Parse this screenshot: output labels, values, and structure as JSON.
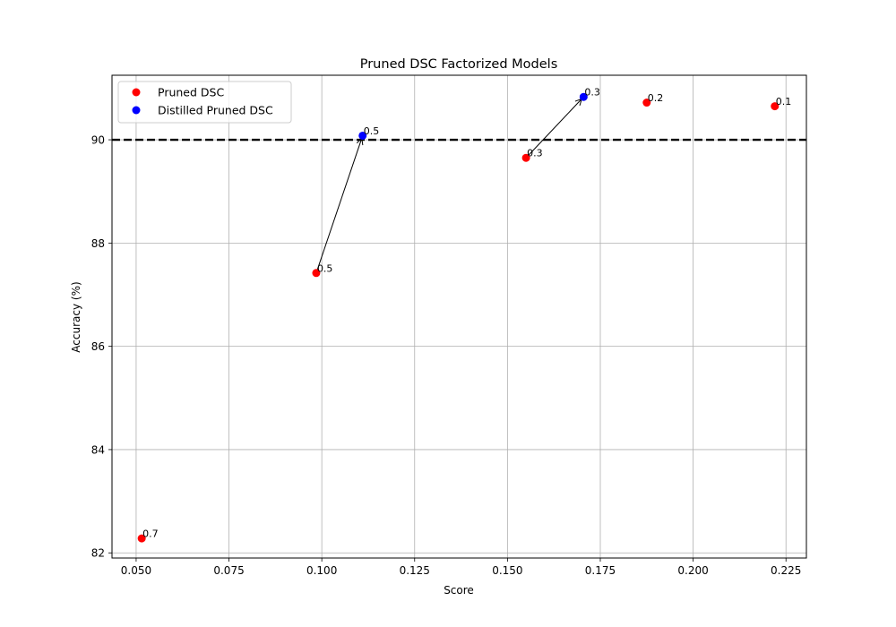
{
  "chart_data": {
    "type": "scatter",
    "title": "Pruned DSC Factorized Models",
    "xlabel": "Score",
    "ylabel": "Accuracy (%)",
    "xlim": [
      0.0435,
      0.2305
    ],
    "ylim": [
      81.9,
      91.25
    ],
    "xticks": [
      0.05,
      0.075,
      0.1,
      0.125,
      0.15,
      0.175,
      0.2,
      0.225
    ],
    "xtick_labels": [
      "0.050",
      "0.075",
      "0.100",
      "0.125",
      "0.150",
      "0.175",
      "0.200",
      "0.225"
    ],
    "yticks": [
      82,
      84,
      86,
      88,
      90
    ],
    "ytick_labels": [
      "82",
      "84",
      "86",
      "88",
      "90"
    ],
    "grid": true,
    "legend_position": "top-left",
    "reference_line": {
      "y": 90,
      "style": "dashed",
      "color": "#000000"
    },
    "series": [
      {
        "name": "Pruned DSC",
        "color": "#ff0000",
        "points": [
          {
            "x": 0.0515,
            "y": 82.28,
            "label": "0.7"
          },
          {
            "x": 0.0985,
            "y": 87.42,
            "label": "0.5"
          },
          {
            "x": 0.155,
            "y": 89.65,
            "label": "0.3"
          },
          {
            "x": 0.1875,
            "y": 90.72,
            "label": "0.2"
          },
          {
            "x": 0.222,
            "y": 90.65,
            "label": "0.1"
          }
        ]
      },
      {
        "name": "Distilled Pruned DSC",
        "color": "#0000ff",
        "points": [
          {
            "x": 0.111,
            "y": 90.08,
            "label": "0.5"
          },
          {
            "x": 0.1705,
            "y": 90.83,
            "label": "0.3"
          }
        ]
      }
    ],
    "arrows": [
      {
        "from": [
          0.0985,
          87.42
        ],
        "to": [
          0.111,
          90.08
        ]
      },
      {
        "from": [
          0.155,
          89.65
        ],
        "to": [
          0.1705,
          90.83
        ]
      }
    ]
  }
}
